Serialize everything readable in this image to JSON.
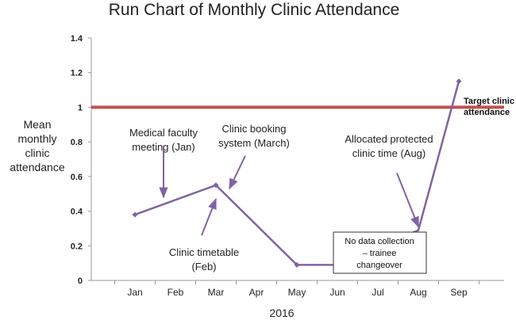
{
  "chart_data": {
    "type": "line",
    "title": "Run Chart of Monthly Clinic Attendance",
    "xlabel": "2016",
    "ylabel_lines": [
      "Mean",
      "monthly",
      "clinic",
      "attendance"
    ],
    "categories": [
      "Jan",
      "Feb",
      "Mar",
      "Apr",
      "May",
      "Jun",
      "Jul",
      "Aug",
      "Sep"
    ],
    "ylim": [
      0,
      1.4
    ],
    "yticks": [
      "0",
      "0.2",
      "0.4",
      "0.6",
      "0.8",
      "1",
      "1.2",
      "1.4"
    ],
    "grid": false,
    "series": [
      {
        "x": [
          "Jan",
          "Mar",
          "May",
          "Jun",
          "Aug",
          "Sep"
        ],
        "values": [
          0.38,
          0.55,
          0.09,
          0.09,
          0.29,
          1.15
        ],
        "markers": [
          true,
          true,
          true,
          false,
          false,
          true
        ],
        "color": "#8064A2"
      }
    ],
    "target": {
      "value": 1.0,
      "label_lines": [
        "Target clinic",
        "attendance"
      ],
      "color": "#C0504D"
    },
    "annotations": [
      {
        "lines": [
          "Medical faculty",
          "meeting (Jan)"
        ],
        "arrow_direction": "down",
        "x": "Feb",
        "y_from": 0.78,
        "y_to": 0.48
      },
      {
        "lines": [
          "Clinic booking",
          "system (March)"
        ],
        "arrow_direction": "down-left",
        "x": "Mar",
        "y_from": 0.72,
        "y_to": 0.53
      },
      {
        "lines": [
          "Clinic timetable",
          "(Feb)"
        ],
        "arrow_direction": "up",
        "x": "Mar",
        "y_from": 0.26,
        "y_to": 0.47
      },
      {
        "lines": [
          "Allocated protected",
          "clinic time (Aug)"
        ],
        "arrow_direction": "down-right",
        "x": "Aug",
        "y_from": 0.62,
        "y_to": 0.31
      }
    ],
    "note_box": {
      "lines": [
        "No data collection",
        "– trainee",
        "changeover"
      ]
    }
  }
}
